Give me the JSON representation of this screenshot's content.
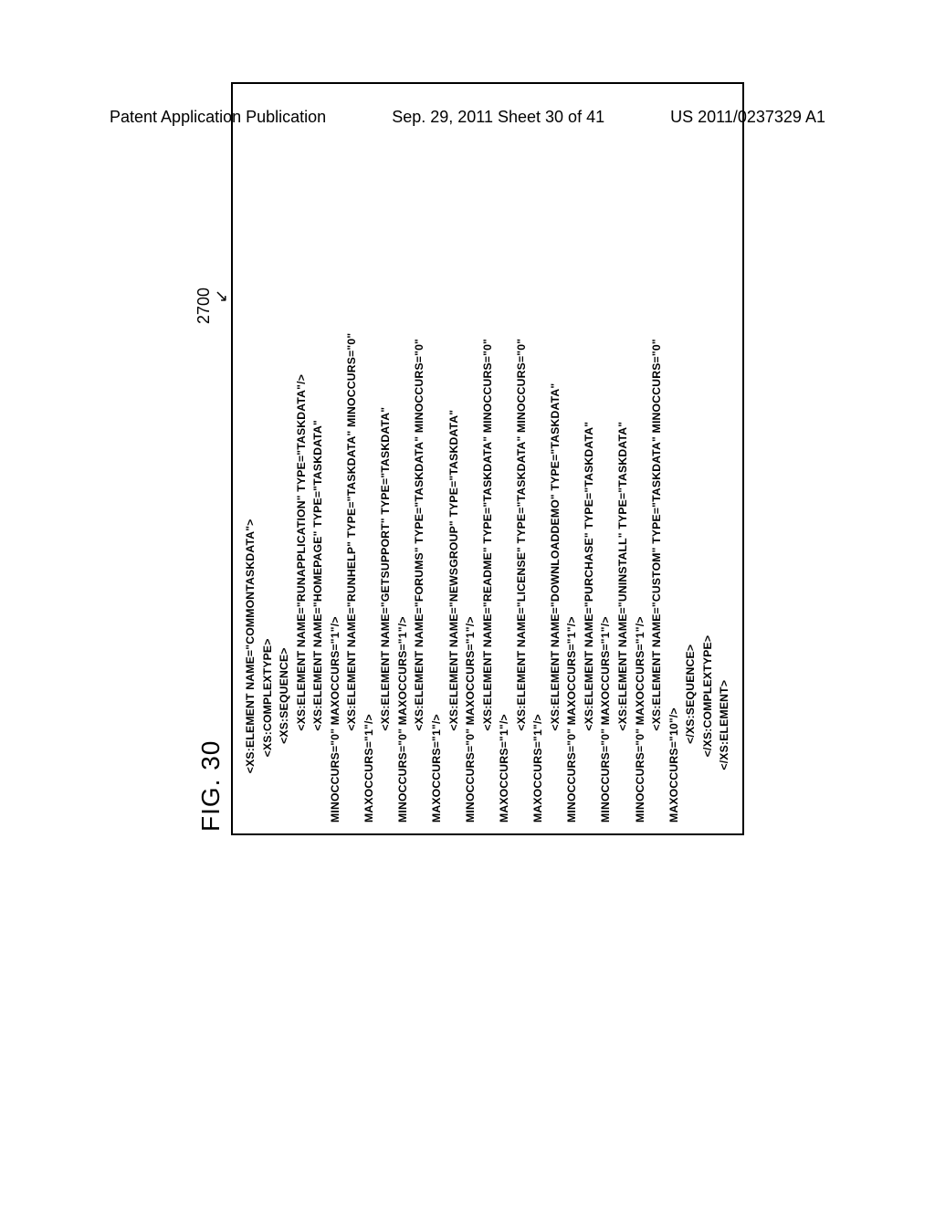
{
  "header": {
    "left": "Patent Application Publication",
    "center": "Sep. 29, 2011  Sheet 30 of 41",
    "right": "US 2011/0237329 A1"
  },
  "figure": {
    "label": "FIG. 30",
    "reference_number": "2700",
    "arrow": "↙"
  },
  "code_lines": [
    "               <XS:ELEMENT NAME=\"COMMONTASKDATA\">",
    "                    <XS:COMPLEXTYPE>",
    "                        <XS:SEQUENCE>",
    "                            <XS:ELEMENT NAME=\"RUNAPPLICATION\" TYPE=\"TASKDATA\"/>",
    "                            <XS:ELEMENT NAME=\"HOMEPAGE\" TYPE=\"TASKDATA\"",
    "MINOCCURS=\"0\" MAXOCCURS=\"1\"/>",
    "                            <XS:ELEMENT NAME=\"RUNHELP\" TYPE=\"TASKDATA\" MINOCCURS=\"0\"",
    "MAXOCCURS=\"1\"/>",
    "                            <XS:ELEMENT NAME=\"GETSUPPORT\" TYPE=\"TASKDATA\"",
    "MINOCCURS=\"0\" MAXOCCURS=\"1\"/>",
    "                            <XS:ELEMENT NAME=\"FORUMS\" TYPE=\"TASKDATA\" MINOCCURS=\"0\"",
    "MAXOCCURS=\"1\"/>",
    "                            <XS:ELEMENT NAME=\"NEWSGROUP\" TYPE=\"TASKDATA\"",
    "MINOCCURS=\"0\" MAXOCCURS=\"1\"/>",
    "                            <XS:ELEMENT NAME=\"README\" TYPE=\"TASKDATA\" MINOCCURS=\"0\"",
    "MAXOCCURS=\"1\"/>",
    "                            <XS:ELEMENT NAME=\"LICENSE\" TYPE=\"TASKDATA\" MINOCCURS=\"0\"",
    "MAXOCCURS=\"1\"/>",
    "                            <XS:ELEMENT NAME=\"DOWNLOADDEMO\" TYPE=\"TASKDATA\"",
    "MINOCCURS=\"0\" MAXOCCURS=\"1\"/>",
    "                            <XS:ELEMENT NAME=\"PURCHASE\" TYPE=\"TASKDATA\"",
    "MINOCCURS=\"0\" MAXOCCURS=\"1\"/>",
    "                            <XS:ELEMENT NAME=\"UNINSTALL\" TYPE=\"TASKDATA\"",
    "MINOCCURS=\"0\" MAXOCCURS=\"1\"/>",
    "                            <XS:ELEMENT NAME=\"CUSTOM\" TYPE=\"TASKDATA\" MINOCCURS=\"0\"",
    "MAXOCCURS=\"10\"/>",
    "                        </XS:SEQUENCE>",
    "                    </XS:COMPLEXTYPE>",
    "                </XS:ELEMENT>"
  ]
}
